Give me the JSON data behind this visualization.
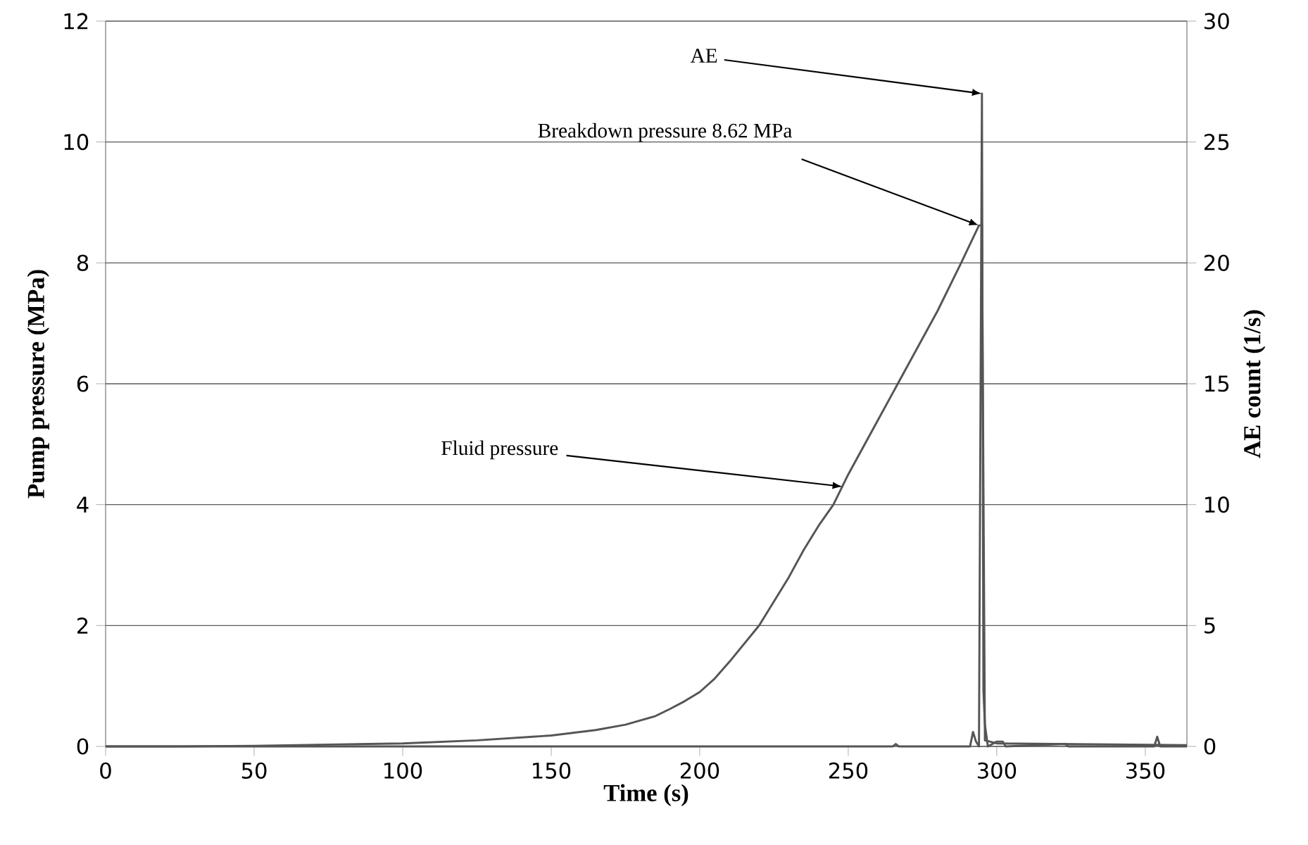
{
  "chart_data": {
    "type": "line",
    "xlabel": "Time (s)",
    "ylabel": "Pump pressure (MPa)",
    "y2label": "AE count (1/s)",
    "xlim": [
      0,
      364
    ],
    "xticks": [
      0,
      50,
      100,
      150,
      200,
      250,
      300,
      350
    ],
    "ylim": [
      0,
      12
    ],
    "yticks": [
      0,
      2,
      4,
      6,
      8,
      10,
      12
    ],
    "y2lim": [
      0,
      30
    ],
    "y2ticks": [
      0,
      5,
      10,
      15,
      20,
      25,
      30
    ],
    "grid": "y",
    "series": [
      {
        "color": "#555555",
        "x": [
          0,
          25,
          50,
          75,
          100,
          125,
          150,
          165,
          175,
          185,
          190,
          195,
          200,
          205,
          210,
          215,
          220,
          225,
          230,
          235,
          240,
          245,
          250,
          260,
          270,
          280,
          288,
          294,
          295,
          296,
          300,
          364
        ],
        "values": [
          0,
          0,
          0.01,
          0.03,
          0.05,
          0.1,
          0.18,
          0.27,
          0.36,
          0.5,
          0.62,
          0.75,
          0.9,
          1.12,
          1.4,
          1.7,
          2.0,
          2.4,
          2.8,
          3.25,
          3.65,
          4.0,
          4.5,
          5.4,
          6.3,
          7.2,
          8.0,
          8.62,
          8.62,
          0.1,
          0.05,
          0.02
        ]
      },
      {
        "axis": "y2",
        "color": "#555555",
        "x": [
          0,
          265,
          266,
          267,
          291,
          292,
          293,
          294,
          295,
          295.5,
          296,
          297,
          300,
          302,
          303,
          323,
          324,
          353,
          354,
          355,
          364
        ],
        "values": [
          0,
          0,
          0.1,
          0,
          0,
          0.6,
          0.2,
          0,
          27,
          2.3,
          0.9,
          0,
          0.2,
          0.2,
          0,
          0.1,
          0,
          0,
          0.4,
          0,
          0
        ]
      }
    ],
    "annotations": [
      {
        "text": "AE",
        "x": 295,
        "y": 10.8
      },
      {
        "text": "Breakdown pressure 8.62 MPa",
        "x": 294,
        "y": 8.62
      },
      {
        "text": "Fluid pressure",
        "x": 248,
        "y": 4.3
      }
    ]
  }
}
